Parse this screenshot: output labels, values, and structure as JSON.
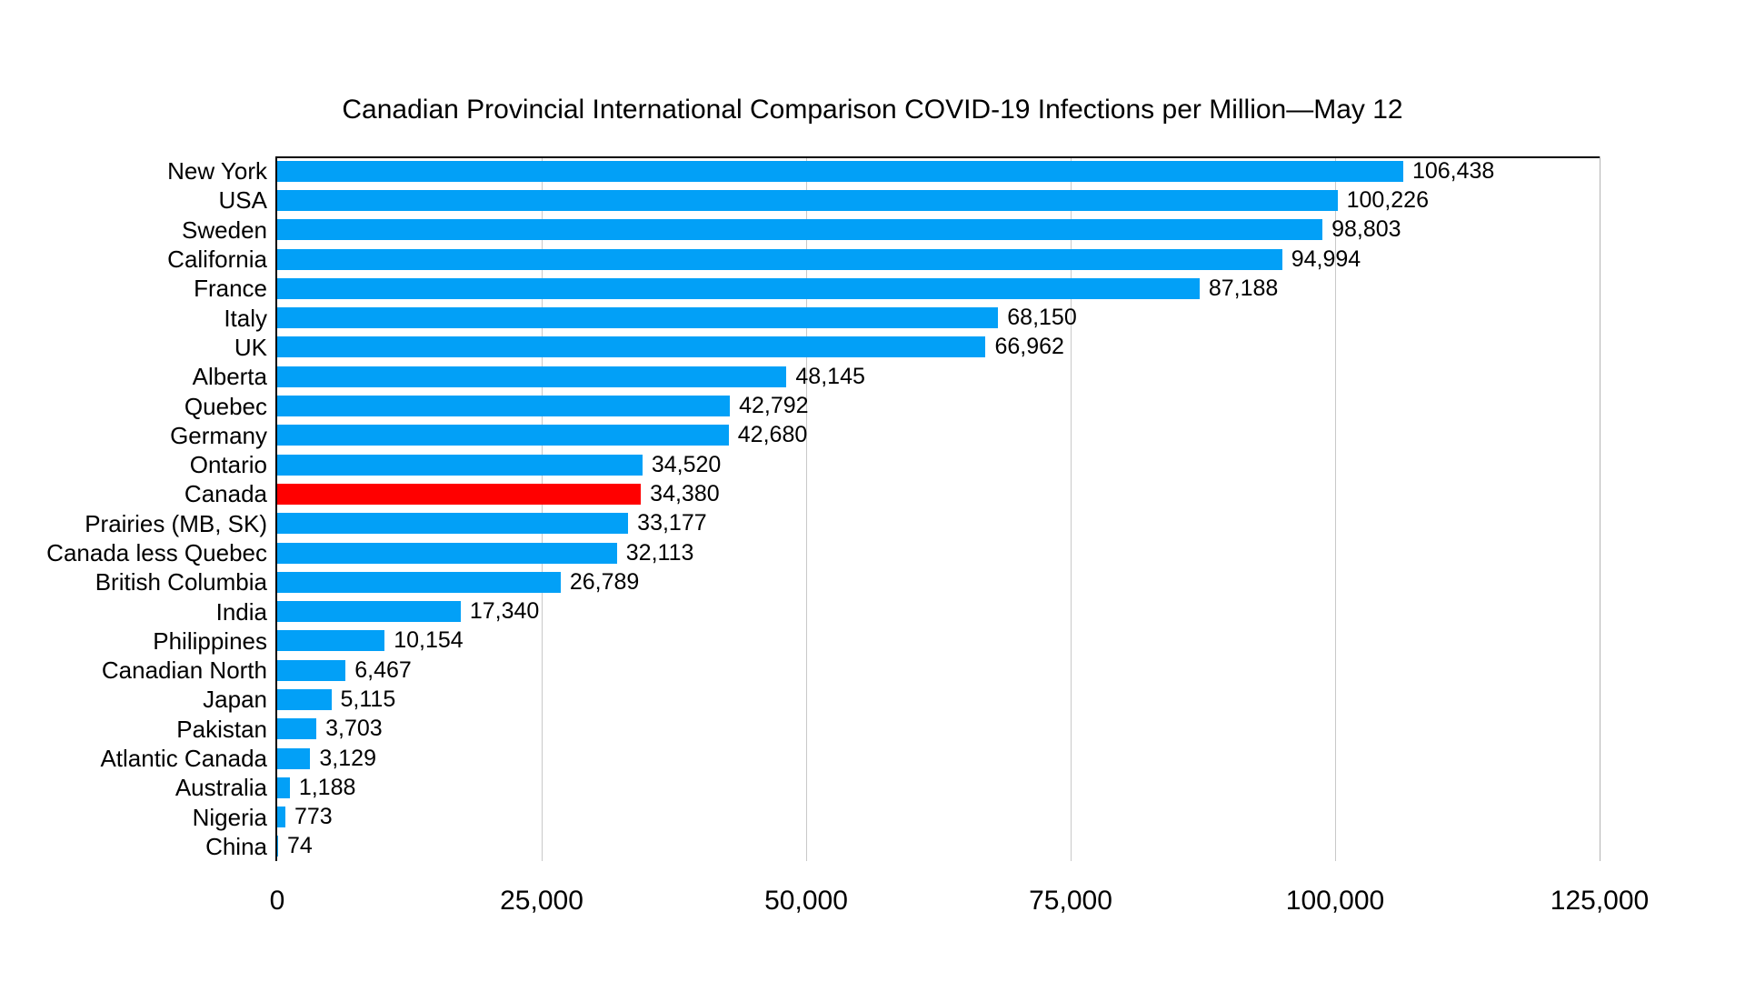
{
  "title": "Canadian Provincial International Comparison COVID-19 Infections per Million—May 12",
  "chart_data": {
    "type": "bar",
    "orientation": "horizontal",
    "title": "Canadian Provincial International Comparison COVID-19 Infections per Million—May 12",
    "categories": [
      "New York",
      "USA",
      "Sweden",
      "California",
      "France",
      "Italy",
      "UK",
      "Alberta",
      "Quebec",
      "Germany",
      "Ontario",
      "Canada",
      "Prairies (MB, SK)",
      "Canada less Quebec",
      "British Columbia",
      "India",
      "Philippines",
      "Canadian North",
      "Japan",
      "Pakistan",
      "Atlantic Canada",
      "Australia",
      "Nigeria",
      "China"
    ],
    "values": [
      106438,
      100226,
      98803,
      94994,
      87188,
      68150,
      66962,
      48145,
      42792,
      42680,
      34520,
      34380,
      33177,
      32113,
      26789,
      17340,
      10154,
      6467,
      5115,
      3703,
      3129,
      1188,
      773,
      74
    ],
    "value_labels": [
      "106,438",
      "100,226",
      "98,803",
      "94,994",
      "87,188",
      "68,150",
      "66,962",
      "48,145",
      "42,792",
      "42,680",
      "34,520",
      "34,380",
      "33,177",
      "32,113",
      "26,789",
      "17,340",
      "10,154",
      "6,467",
      "5,115",
      "3,703",
      "3,129",
      "1,188",
      "773",
      "74"
    ],
    "highlight_category": "Canada",
    "bar_color": "#02a0f7",
    "highlight_color": "#ff0000",
    "xlim": [
      0,
      125000
    ],
    "x_ticks": [
      0,
      25000,
      50000,
      75000,
      100000,
      125000
    ],
    "x_tick_labels": [
      "0",
      "25,000",
      "50,000",
      "75,000",
      "100,000",
      "125,000"
    ],
    "grid": true,
    "gridline_color": "#c9c9c9",
    "axis_color": "#000000",
    "legend_position": "none",
    "xlabel": "",
    "ylabel": ""
  }
}
